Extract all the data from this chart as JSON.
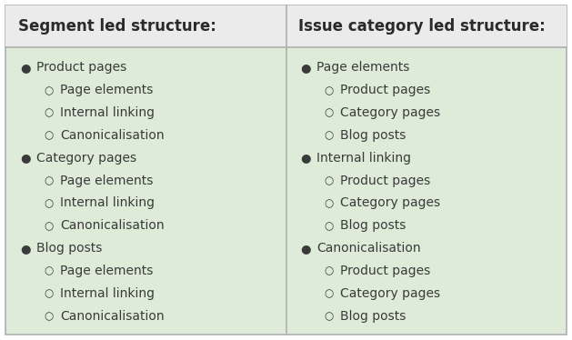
{
  "bg_color": "#deebd8",
  "header_bg_color": "#ebebeb",
  "border_color": "#b0b0b0",
  "text_color": "#3a3a3a",
  "title_color": "#2a2a2a",
  "divider_color": "#b0b0b0",
  "fig_bg_color": "#ffffff",
  "left_title": "Segment led structure:",
  "right_title": "Issue category led structure:",
  "left_items": [
    {
      "level": 1,
      "text": "Product pages"
    },
    {
      "level": 2,
      "text": "Page elements"
    },
    {
      "level": 2,
      "text": "Internal linking"
    },
    {
      "level": 2,
      "text": "Canonicalisation"
    },
    {
      "level": 1,
      "text": "Category pages"
    },
    {
      "level": 2,
      "text": "Page elements"
    },
    {
      "level": 2,
      "text": "Internal linking"
    },
    {
      "level": 2,
      "text": "Canonicalisation"
    },
    {
      "level": 1,
      "text": "Blog posts"
    },
    {
      "level": 2,
      "text": "Page elements"
    },
    {
      "level": 2,
      "text": "Internal linking"
    },
    {
      "level": 2,
      "text": "Canonicalisation"
    }
  ],
  "right_items": [
    {
      "level": 1,
      "text": "Page elements"
    },
    {
      "level": 2,
      "text": "Product pages"
    },
    {
      "level": 2,
      "text": "Category pages"
    },
    {
      "level": 2,
      "text": "Blog posts"
    },
    {
      "level": 1,
      "text": "Internal linking"
    },
    {
      "level": 2,
      "text": "Product pages"
    },
    {
      "level": 2,
      "text": "Category pages"
    },
    {
      "level": 2,
      "text": "Blog posts"
    },
    {
      "level": 1,
      "text": "Canonicalisation"
    },
    {
      "level": 2,
      "text": "Product pages"
    },
    {
      "level": 2,
      "text": "Category pages"
    },
    {
      "level": 2,
      "text": "Blog posts"
    }
  ],
  "font_size_title": 12,
  "font_size_item": 10,
  "fig_width": 6.29,
  "fig_height": 3.74,
  "dpi": 100
}
